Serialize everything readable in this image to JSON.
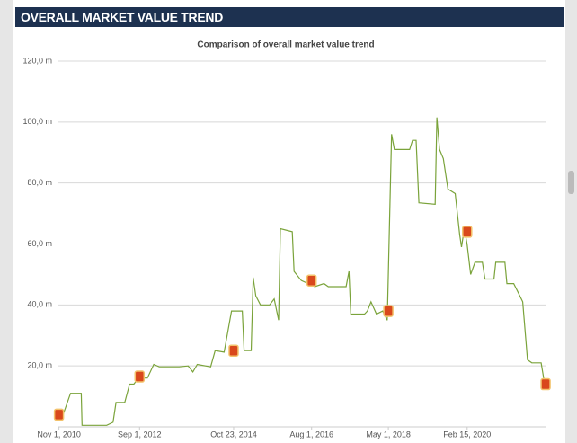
{
  "header": {
    "title": "OVERALL MARKET VALUE TREND"
  },
  "chart_data": {
    "type": "line",
    "title": "Comparison of overall market value trend",
    "x": [
      "2010-11-01",
      "2010-12-05",
      "2011-02-05",
      "2011-05-05",
      "2011-05-12",
      "2011-12-03",
      "2012-01-25",
      "2012-02-18",
      "2012-05-01",
      "2012-06-10",
      "2012-07-15",
      "2012-08-22",
      "2012-11-05",
      "2012-12-28",
      "2013-02-12",
      "2013-07-28",
      "2013-10-10",
      "2013-11-18",
      "2013-12-25",
      "2014-04-15",
      "2014-05-22",
      "2014-08-05",
      "2014-10-05",
      "2015-01-03",
      "2015-01-18",
      "2015-03-18",
      "2015-04-03",
      "2015-04-25",
      "2015-06-03",
      "2015-08-18",
      "2015-09-25",
      "2015-11-01",
      "2015-11-16",
      "2016-02-22",
      "2016-03-08",
      "2016-05-08",
      "2016-08-28",
      "2016-11-12",
      "2016-12-18",
      "2017-05-15",
      "2017-06-08",
      "2017-06-23",
      "2017-10-15",
      "2017-11-08",
      "2017-12-08",
      "2018-01-22",
      "2018-03-15",
      "2018-04-22",
      "2018-05-28",
      "2018-06-20",
      "2018-10-25",
      "2018-11-18",
      "2018-12-18",
      "2019-01-10",
      "2019-05-25",
      "2019-06-08",
      "2019-07-01",
      "2019-08-01",
      "2019-09-08",
      "2019-11-08",
      "2019-12-15",
      "2019-12-30",
      "2020-01-22",
      "2020-02-14",
      "2020-03-15",
      "2020-04-20",
      "2020-06-20",
      "2020-07-12",
      "2020-09-25",
      "2020-10-10",
      "2020-12-25",
      "2021-01-10",
      "2021-03-08",
      "2021-04-15",
      "2021-05-22",
      "2021-06-30",
      "2021-08-05",
      "2021-10-22",
      "2021-11-12",
      "2021-11-28"
    ],
    "series": [
      {
        "color": "#7aa33a",
        "values": [
          4,
          4,
          11,
          11,
          0.5,
          0.5,
          1.5,
          8,
          8,
          14,
          14,
          16,
          16,
          20.5,
          19.7,
          19.7,
          20,
          18,
          20.5,
          19.7,
          25,
          24.5,
          38,
          38,
          25,
          25,
          49,
          43,
          40,
          40,
          42,
          35,
          65,
          64,
          51,
          48,
          46,
          47,
          46,
          46,
          51,
          37,
          37,
          38,
          41,
          37,
          38,
          35,
          96,
          91,
          91,
          94,
          94,
          73.5,
          73,
          101.5,
          91,
          88,
          78,
          76.5,
          63,
          59,
          65,
          60,
          50,
          54,
          54,
          48.5,
          48.5,
          54,
          54,
          47,
          47,
          44,
          41,
          22,
          21,
          21,
          16,
          14
        ]
      }
    ],
    "club_markers": {
      "color": "#d9481c",
      "x": [
        "2010-11-01",
        "2012-09-01",
        "2014-10-23",
        "2016-08-01",
        "2018-05-01",
        "2020-02-15",
        "2021-11-28"
      ],
      "values": [
        4,
        16.5,
        25,
        48,
        38,
        64,
        14
      ]
    },
    "xlim": [
      "2010-10-20",
      "2021-12-05"
    ],
    "xticks": [
      {
        "value": "2010-11-01",
        "label": "Nov 1, 2010"
      },
      {
        "value": "2012-09-01",
        "label": "Sep 1, 2012"
      },
      {
        "value": "2014-10-23",
        "label": "Oct 23, 2014"
      },
      {
        "value": "2016-08-01",
        "label": "Aug 1, 2016"
      },
      {
        "value": "2018-05-01",
        "label": "May 1, 2018"
      },
      {
        "value": "2020-02-15",
        "label": "Feb 15, 2020"
      }
    ],
    "ylim": [
      0,
      120
    ],
    "yticks": [
      {
        "value": 20,
        "label": "20,0 m"
      },
      {
        "value": 40,
        "label": "40,0 m"
      },
      {
        "value": 60,
        "label": "60,0 m"
      },
      {
        "value": 80,
        "label": "80,0 m"
      },
      {
        "value": 100,
        "label": "100,0 m"
      },
      {
        "value": 120,
        "label": "120,0 m"
      }
    ],
    "grid": true
  }
}
